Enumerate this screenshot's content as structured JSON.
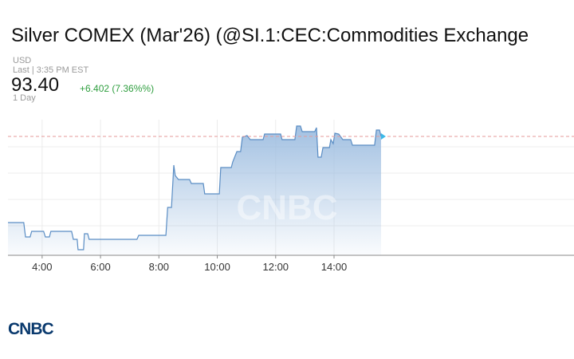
{
  "chart_data": {
    "type": "line",
    "title": "Silver COMEX (Mar'26) (@SI.1:CEC:Commodities Exchange",
    "currency": "USD",
    "last_time": "Last | 3:35 PM EST",
    "last_price": "93.40",
    "change": "+6.402 (7.36%%)",
    "range": "1 Day",
    "watermark": "CNBC",
    "logo": "CNBC",
    "color": "#5a8dc4",
    "x": [
      2.83,
      3.37,
      3.43,
      3.59,
      3.64,
      4.05,
      4.11,
      4.25,
      4.3,
      5.01,
      5.07,
      5.2,
      5.23,
      5.42,
      5.45,
      5.56,
      5.61,
      7.25,
      7.31,
      8.24,
      8.3,
      8.43,
      8.51,
      8.56,
      8.67,
      9.05,
      9.11,
      9.52,
      9.57,
      10.07,
      10.12,
      10.48,
      10.53,
      10.67,
      10.8,
      10.86,
      11.02,
      11.13,
      11.57,
      11.62,
      12.17,
      12.22,
      12.66,
      12.72,
      12.85,
      12.91,
      13.34,
      13.4,
      13.45,
      13.56,
      13.62,
      13.84,
      13.89,
      13.97,
      14.03,
      14.16,
      14.3,
      14.57,
      14.63,
      15.39,
      15.45,
      15.56,
      15.61
    ],
    "values": [
      86.92,
      86.92,
      85.84,
      85.84,
      86.26,
      86.26,
      85.84,
      85.84,
      86.26,
      86.26,
      85.66,
      85.66,
      84.88,
      84.88,
      86.08,
      86.08,
      85.66,
      85.66,
      85.96,
      85.96,
      88.06,
      88.06,
      91.24,
      90.46,
      90.16,
      90.16,
      89.86,
      89.86,
      89.08,
      89.08,
      91.06,
      91.06,
      91.48,
      92.26,
      92.26,
      93.34,
      93.46,
      93.16,
      93.16,
      93.58,
      93.58,
      93.16,
      93.16,
      94.18,
      94.18,
      93.76,
      93.76,
      94.06,
      91.84,
      91.84,
      92.56,
      92.56,
      93.16,
      92.86,
      93.64,
      93.58,
      93.16,
      93.16,
      92.74,
      92.74,
      93.88,
      93.88,
      93.4
    ],
    "xlim": [
      2.83,
      22.22
    ],
    "ylim": [
      84.46,
      94.66
    ],
    "xticks": [
      {
        "value": 4,
        "label": "4:00"
      },
      {
        "value": 6,
        "label": "6:00"
      },
      {
        "value": 8,
        "label": "8:00"
      },
      {
        "value": 10,
        "label": "10:00"
      },
      {
        "value": 12,
        "label": "12:00"
      },
      {
        "value": 14,
        "label": "14:00"
      }
    ],
    "grid": true
  }
}
